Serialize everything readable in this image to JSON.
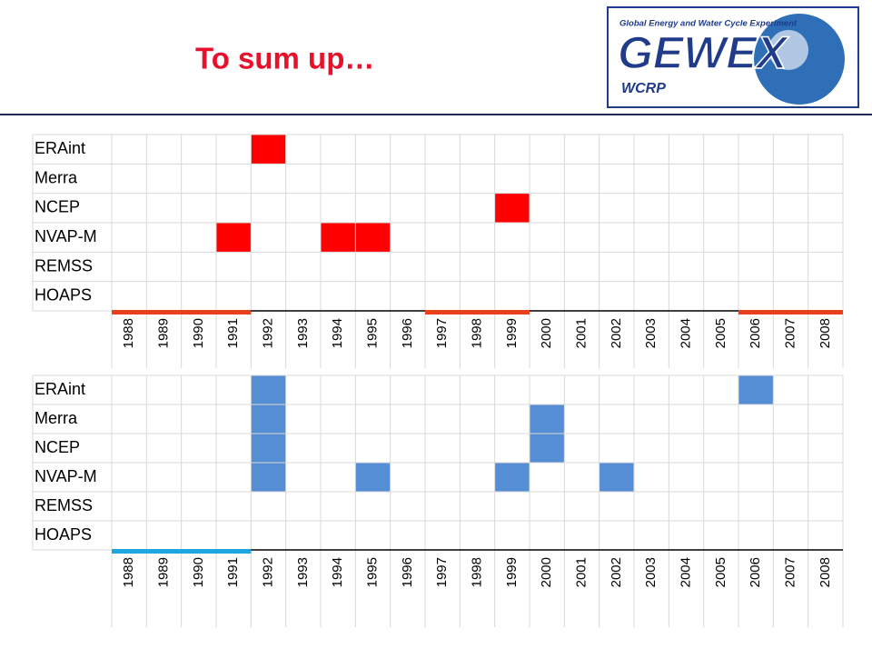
{
  "header": {
    "title": "To sum up…",
    "logo": {
      "tagline": "Global Energy and Water Cycle Experiment",
      "name": "GEWEX",
      "org": "WCRP"
    }
  },
  "grids": [
    {
      "years": [
        1988,
        1989,
        1990,
        1991,
        1992,
        1993,
        1994,
        1995,
        1996,
        1997,
        1998,
        1999,
        2000,
        2001,
        2002,
        2003,
        2004,
        2005,
        2006,
        2007,
        2008
      ],
      "cell_color": "#ff0000",
      "span_color": "#e8401c",
      "rows": [
        {
          "label": "ERAint",
          "highlight": [
            1992
          ]
        },
        {
          "label": "Merra",
          "highlight": []
        },
        {
          "label": "NCEP",
          "highlight": [
            1999
          ]
        },
        {
          "label": "NVAP-M",
          "highlight": [
            1991,
            1994,
            1995
          ]
        },
        {
          "label": "REMSS",
          "highlight": []
        },
        {
          "label": "HOAPS",
          "highlight": []
        }
      ],
      "spans": [
        [
          1988,
          1991
        ],
        [
          1997,
          1999
        ],
        [
          2006,
          2008
        ]
      ]
    },
    {
      "years": [
        1988,
        1989,
        1990,
        1991,
        1992,
        1993,
        1994,
        1995,
        1996,
        1997,
        1998,
        1999,
        2000,
        2001,
        2002,
        2003,
        2004,
        2005,
        2006,
        2007,
        2008
      ],
      "cell_color": "#558ed5",
      "span_color": "#1ea6e0",
      "rows": [
        {
          "label": "ERAint",
          "highlight": [
            1992,
            2006
          ]
        },
        {
          "label": "Merra",
          "highlight": [
            1992,
            2000
          ]
        },
        {
          "label": "NCEP",
          "highlight": [
            1992,
            2000
          ]
        },
        {
          "label": "NVAP-M",
          "highlight": [
            1992,
            1995,
            1999,
            2002
          ]
        },
        {
          "label": "REMSS",
          "highlight": []
        },
        {
          "label": "HOAPS",
          "highlight": []
        }
      ],
      "spans": [
        [
          1988,
          1991
        ]
      ]
    }
  ]
}
